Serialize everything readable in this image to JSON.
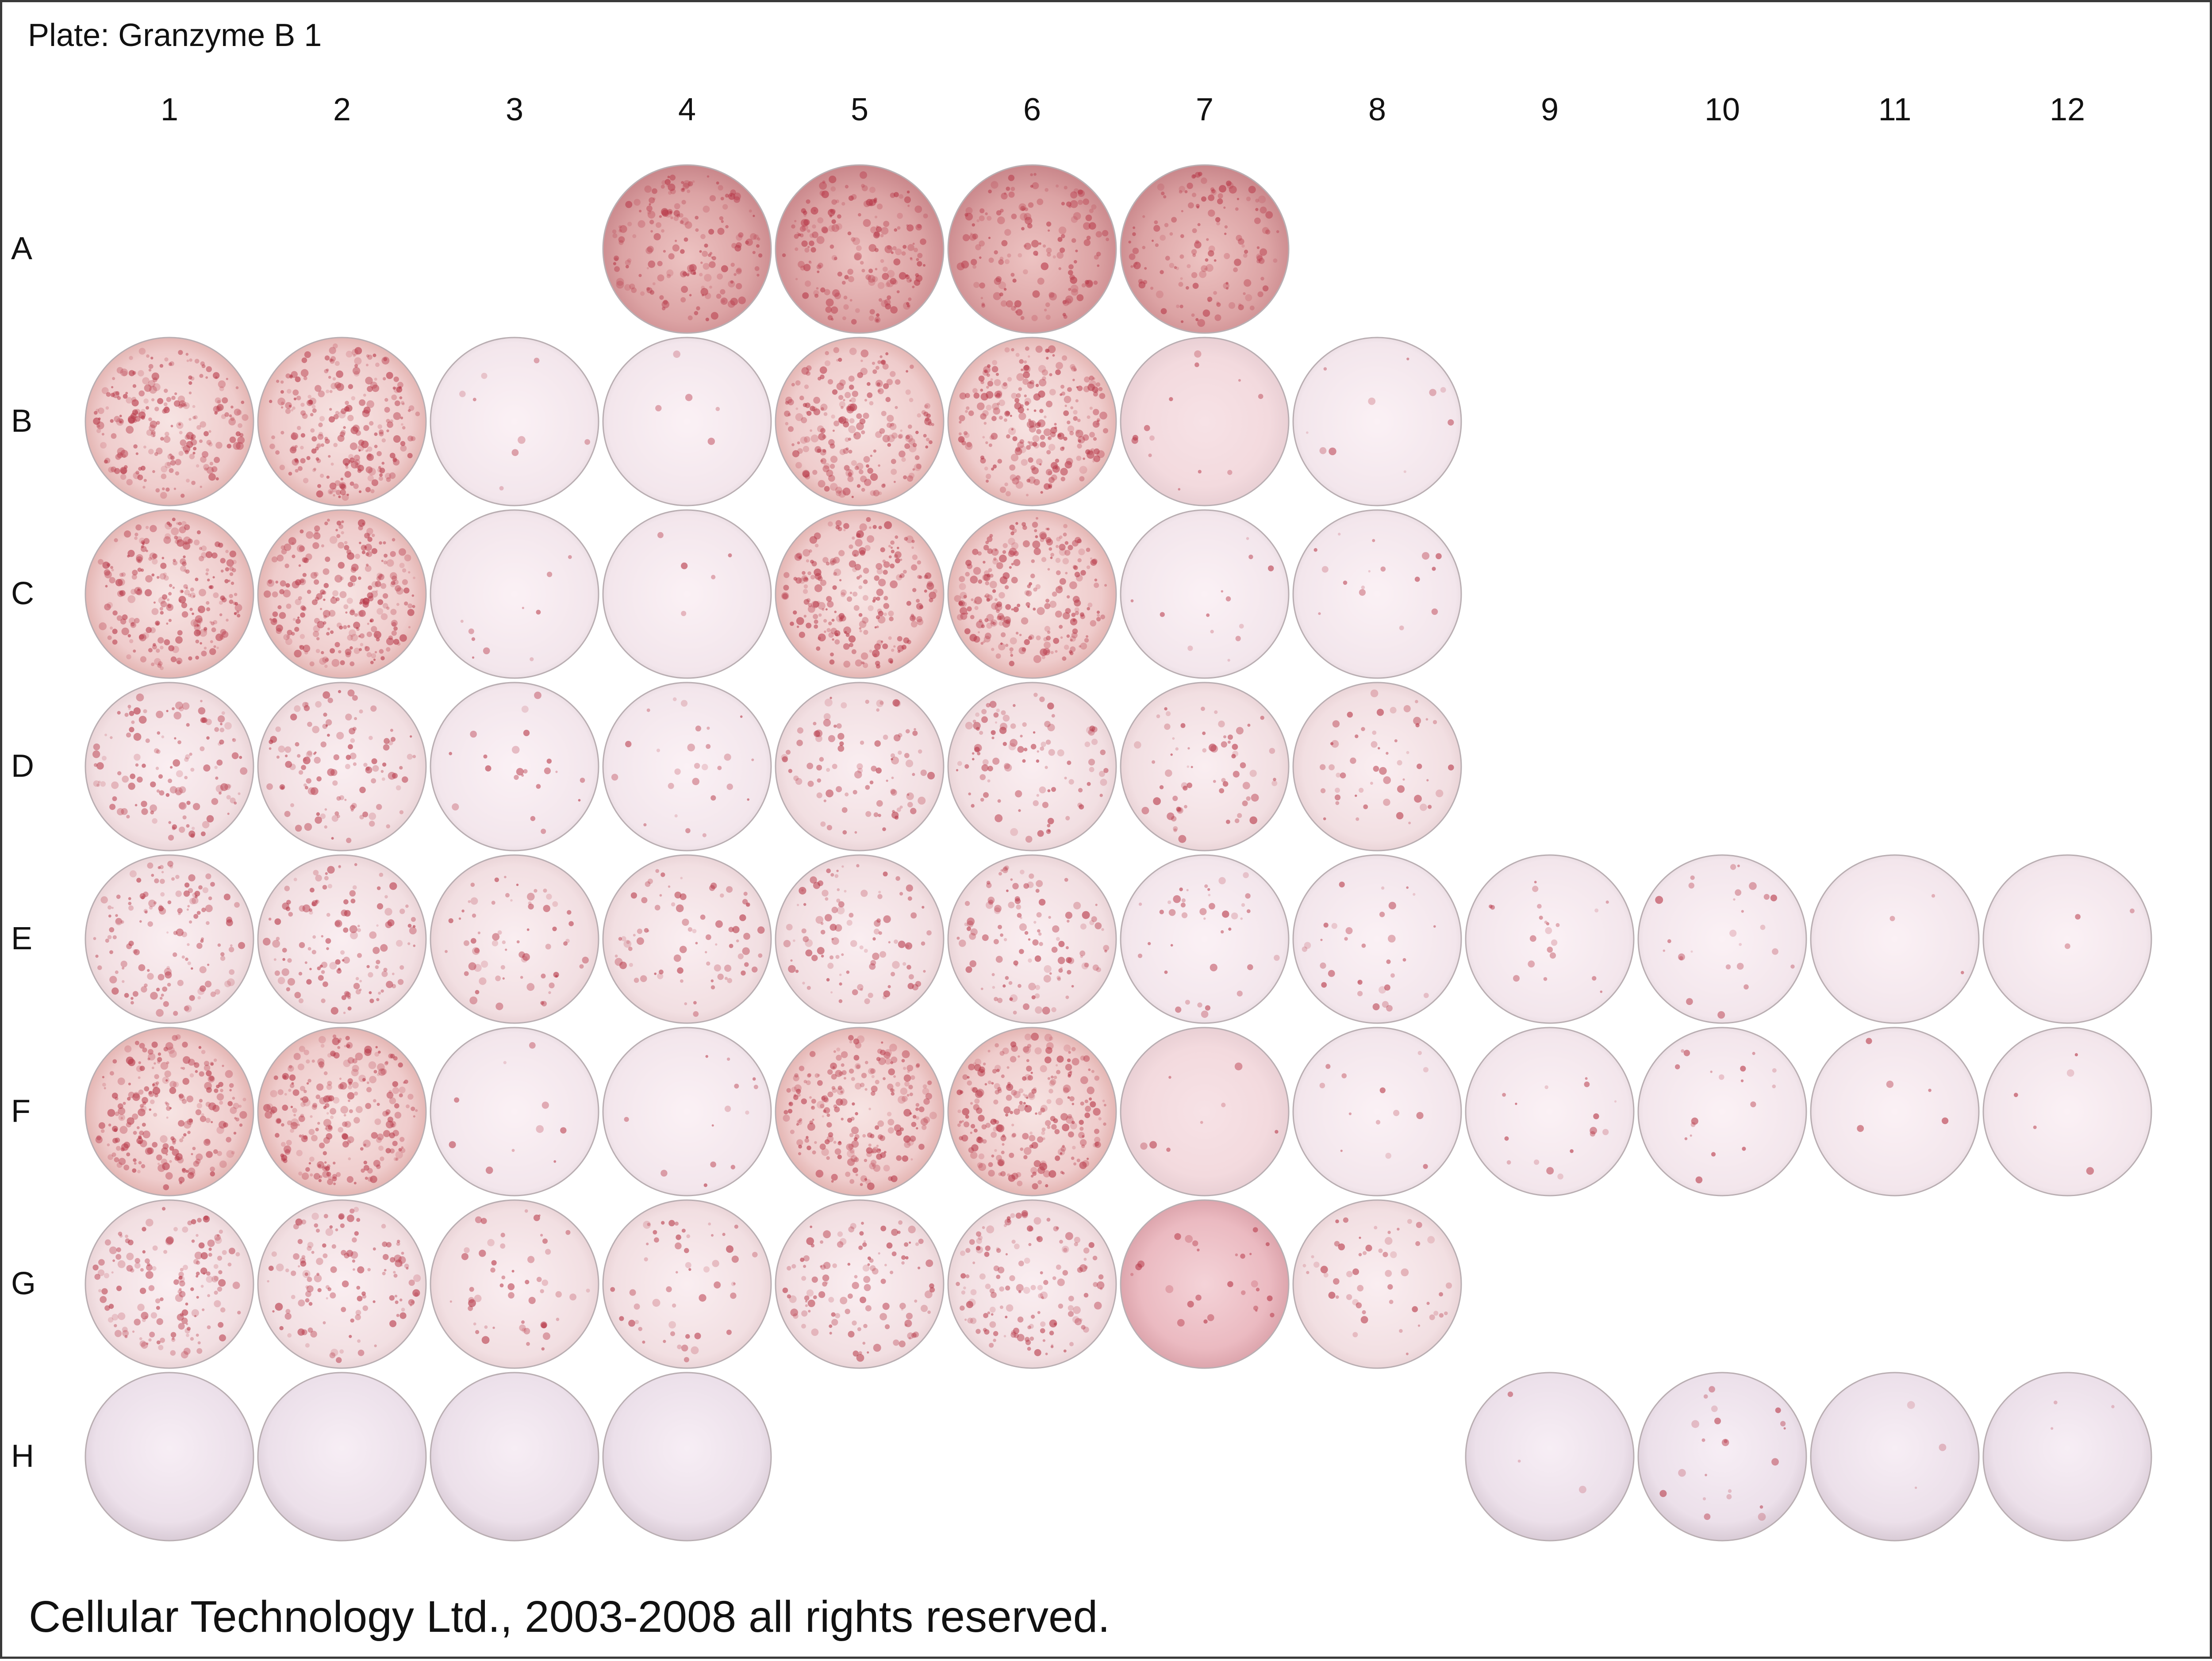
{
  "plate": {
    "title": "Plate: Granzyme B 1",
    "footer": "Cellular Technology Ltd., 2003-2008 all rights reserved."
  },
  "columns": [
    "1",
    "2",
    "3",
    "4",
    "5",
    "6",
    "7",
    "8",
    "9",
    "10",
    "11",
    "12"
  ],
  "rows": [
    "A",
    "B",
    "C",
    "D",
    "E",
    "F",
    "G",
    "H"
  ],
  "colors": {
    "background": "#ffffff",
    "border": "#3a3a3a",
    "spot": "#b83a4a",
    "rim": "#b9aeb2"
  },
  "wells": [
    {
      "row": "A",
      "col": 4,
      "tone": "dark",
      "spots": 0.7
    },
    {
      "row": "A",
      "col": 5,
      "tone": "dark",
      "spots": 0.75
    },
    {
      "row": "A",
      "col": 6,
      "tone": "dark",
      "spots": 0.6
    },
    {
      "row": "A",
      "col": 7,
      "tone": "dark",
      "spots": 0.55
    },
    {
      "row": "B",
      "col": 1,
      "tone": "warm",
      "spots": 0.9
    },
    {
      "row": "B",
      "col": 2,
      "tone": "warm",
      "spots": 0.95
    },
    {
      "row": "B",
      "col": 3,
      "tone": "pale",
      "spots": 0.03
    },
    {
      "row": "B",
      "col": 4,
      "tone": "pale",
      "spots": 0.02
    },
    {
      "row": "B",
      "col": 5,
      "tone": "warm",
      "spots": 0.85
    },
    {
      "row": "B",
      "col": 6,
      "tone": "warm",
      "spots": 1.0
    },
    {
      "row": "B",
      "col": 7,
      "tone": "pink",
      "spots": 0.05
    },
    {
      "row": "B",
      "col": 8,
      "tone": "pale",
      "spots": 0.04
    },
    {
      "row": "C",
      "col": 1,
      "tone": "warm",
      "spots": 0.95
    },
    {
      "row": "C",
      "col": 2,
      "tone": "warm",
      "spots": 1.0
    },
    {
      "row": "C",
      "col": 3,
      "tone": "pale",
      "spots": 0.04
    },
    {
      "row": "C",
      "col": 4,
      "tone": "pale",
      "spots": 0.02
    },
    {
      "row": "C",
      "col": 5,
      "tone": "warm",
      "spots": 0.9
    },
    {
      "row": "C",
      "col": 6,
      "tone": "warm",
      "spots": 0.95
    },
    {
      "row": "C",
      "col": 7,
      "tone": "pale",
      "spots": 0.05
    },
    {
      "row": "C",
      "col": 8,
      "tone": "pale",
      "spots": 0.06
    },
    {
      "row": "D",
      "col": 1,
      "tone": "light",
      "spots": 0.5
    },
    {
      "row": "D",
      "col": 2,
      "tone": "light",
      "spots": 0.45
    },
    {
      "row": "D",
      "col": 3,
      "tone": "pale",
      "spots": 0.08
    },
    {
      "row": "D",
      "col": 4,
      "tone": "pale",
      "spots": 0.1
    },
    {
      "row": "D",
      "col": 5,
      "tone": "light",
      "spots": 0.35
    },
    {
      "row": "D",
      "col": 6,
      "tone": "light",
      "spots": 0.4
    },
    {
      "row": "D",
      "col": 7,
      "tone": "light",
      "spots": 0.25
    },
    {
      "row": "D",
      "col": 8,
      "tone": "light",
      "spots": 0.2
    },
    {
      "row": "E",
      "col": 1,
      "tone": "light",
      "spots": 0.55
    },
    {
      "row": "E",
      "col": 2,
      "tone": "light",
      "spots": 0.5
    },
    {
      "row": "E",
      "col": 3,
      "tone": "light",
      "spots": 0.25
    },
    {
      "row": "E",
      "col": 4,
      "tone": "light",
      "spots": 0.3
    },
    {
      "row": "E",
      "col": 5,
      "tone": "light",
      "spots": 0.4
    },
    {
      "row": "E",
      "col": 6,
      "tone": "light",
      "spots": 0.45
    },
    {
      "row": "E",
      "col": 7,
      "tone": "pale",
      "spots": 0.15
    },
    {
      "row": "E",
      "col": 8,
      "tone": "pale",
      "spots": 0.12
    },
    {
      "row": "E",
      "col": 9,
      "tone": "pale",
      "spots": 0.08
    },
    {
      "row": "E",
      "col": 10,
      "tone": "pale",
      "spots": 0.1
    },
    {
      "row": "E",
      "col": 11,
      "tone": "pale",
      "spots": 0.01
    },
    {
      "row": "E",
      "col": 12,
      "tone": "pale",
      "spots": 0.01
    },
    {
      "row": "F",
      "col": 1,
      "tone": "warm",
      "spots": 0.9
    },
    {
      "row": "F",
      "col": 2,
      "tone": "warm",
      "spots": 0.95
    },
    {
      "row": "F",
      "col": 3,
      "tone": "pale",
      "spots": 0.04
    },
    {
      "row": "F",
      "col": 4,
      "tone": "pale",
      "spots": 0.05
    },
    {
      "row": "F",
      "col": 5,
      "tone": "warm",
      "spots": 0.9
    },
    {
      "row": "F",
      "col": 6,
      "tone": "warm",
      "spots": 0.95
    },
    {
      "row": "F",
      "col": 7,
      "tone": "pink",
      "spots": 0.03
    },
    {
      "row": "F",
      "col": 8,
      "tone": "pale",
      "spots": 0.05
    },
    {
      "row": "F",
      "col": 9,
      "tone": "pale",
      "spots": 0.06
    },
    {
      "row": "F",
      "col": 10,
      "tone": "pale",
      "spots": 0.07
    },
    {
      "row": "F",
      "col": 11,
      "tone": "pale",
      "spots": 0.02
    },
    {
      "row": "F",
      "col": 12,
      "tone": "pale",
      "spots": 0.02
    },
    {
      "row": "G",
      "col": 1,
      "tone": "light",
      "spots": 0.6
    },
    {
      "row": "G",
      "col": 2,
      "tone": "light",
      "spots": 0.5
    },
    {
      "row": "G",
      "col": 3,
      "tone": "light",
      "spots": 0.2
    },
    {
      "row": "G",
      "col": 4,
      "tone": "light",
      "spots": 0.2
    },
    {
      "row": "G",
      "col": 5,
      "tone": "light",
      "spots": 0.45
    },
    {
      "row": "G",
      "col": 6,
      "tone": "light",
      "spots": 0.55
    },
    {
      "row": "G",
      "col": 7,
      "tone": "rose",
      "spots": 0.1
    },
    {
      "row": "G",
      "col": 8,
      "tone": "light",
      "spots": 0.2
    },
    {
      "row": "H",
      "col": 1,
      "tone": "lavender",
      "spots": 0.0
    },
    {
      "row": "H",
      "col": 2,
      "tone": "lavender",
      "spots": 0.0
    },
    {
      "row": "H",
      "col": 3,
      "tone": "lavender",
      "spots": 0.0
    },
    {
      "row": "H",
      "col": 4,
      "tone": "lavender",
      "spots": 0.0
    },
    {
      "row": "H",
      "col": 9,
      "tone": "lavender",
      "spots": 0.01
    },
    {
      "row": "H",
      "col": 10,
      "tone": "lavender",
      "spots": 0.08
    },
    {
      "row": "H",
      "col": 11,
      "tone": "lavender",
      "spots": 0.01
    },
    {
      "row": "H",
      "col": 12,
      "tone": "lavender",
      "spots": 0.01
    }
  ]
}
